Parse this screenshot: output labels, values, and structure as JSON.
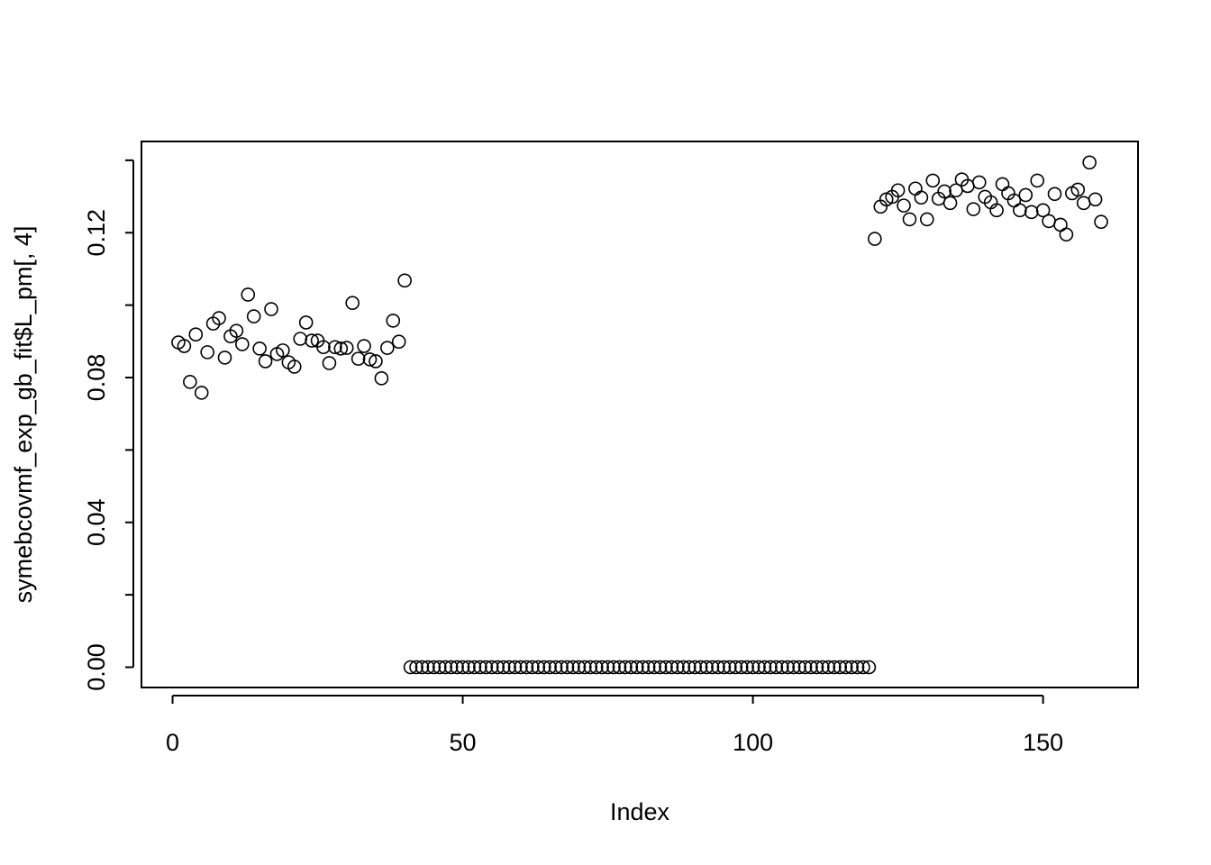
{
  "chart_data": {
    "type": "scatter",
    "x_label": "Index",
    "y_label": "symebcovmf_exp_gb_fit$L_pm[, 4]",
    "x": [
      1,
      2,
      3,
      4,
      5,
      6,
      7,
      8,
      9,
      10,
      11,
      12,
      13,
      14,
      15,
      16,
      17,
      18,
      19,
      20,
      21,
      22,
      23,
      24,
      25,
      26,
      27,
      28,
      29,
      30,
      31,
      32,
      33,
      34,
      35,
      36,
      37,
      38,
      39,
      40,
      41,
      42,
      43,
      44,
      45,
      46,
      47,
      48,
      49,
      50,
      51,
      52,
      53,
      54,
      55,
      56,
      57,
      58,
      59,
      60,
      61,
      62,
      63,
      64,
      65,
      66,
      67,
      68,
      69,
      70,
      71,
      72,
      73,
      74,
      75,
      76,
      77,
      78,
      79,
      80,
      81,
      82,
      83,
      84,
      85,
      86,
      87,
      88,
      89,
      90,
      91,
      92,
      93,
      94,
      95,
      96,
      97,
      98,
      99,
      100,
      101,
      102,
      103,
      104,
      105,
      106,
      107,
      108,
      109,
      110,
      111,
      112,
      113,
      114,
      115,
      116,
      117,
      118,
      119,
      120,
      121,
      122,
      123,
      124,
      125,
      126,
      127,
      128,
      129,
      130,
      131,
      132,
      133,
      134,
      135,
      136,
      137,
      138,
      139,
      140,
      141,
      142,
      143,
      144,
      145,
      146,
      147,
      148,
      149,
      150,
      151,
      152,
      153,
      154,
      155,
      156,
      157,
      158,
      159,
      160
    ],
    "series": [
      {
        "color": "#000000",
        "values": [
          0.0897,
          0.0887,
          0.0788,
          0.0919,
          0.0758,
          0.087,
          0.0949,
          0.0964,
          0.0855,
          0.0914,
          0.0929,
          0.0892,
          0.1029,
          0.0969,
          0.088,
          0.0845,
          0.0989,
          0.0865,
          0.0875,
          0.0842,
          0.083,
          0.0907,
          0.0952,
          0.0902,
          0.0902,
          0.0884,
          0.084,
          0.0884,
          0.088,
          0.0882,
          0.1006,
          0.0852,
          0.0887,
          0.085,
          0.0845,
          0.0798,
          0.0882,
          0.0957,
          0.0899,
          0.1068,
          0,
          0,
          0,
          0,
          0,
          0,
          0,
          0,
          0,
          0,
          0,
          0,
          0,
          0,
          0,
          0,
          0,
          0,
          0,
          0,
          0,
          0,
          0,
          0,
          0,
          0,
          0,
          0,
          0,
          0,
          0,
          0,
          0,
          0,
          0,
          0,
          0,
          0,
          0,
          0,
          0,
          0,
          0,
          0,
          0,
          0,
          0,
          0,
          0,
          0,
          0,
          0,
          0,
          0,
          0,
          0,
          0,
          0,
          0,
          0,
          0,
          0,
          0,
          0,
          0,
          0,
          0,
          0,
          0,
          0,
          0,
          0,
          0,
          0,
          0,
          0,
          0,
          0,
          0,
          0,
          0.1183,
          0.1272,
          0.1292,
          0.1299,
          0.1317,
          0.1275,
          0.1237,
          0.1322,
          0.1297,
          0.1237,
          0.1344,
          0.1294,
          0.1314,
          0.1282,
          0.1317,
          0.1347,
          0.1329,
          0.1265,
          0.1339,
          0.1299,
          0.1284,
          0.1262,
          0.1334,
          0.1309,
          0.1289,
          0.1262,
          0.1304,
          0.1257,
          0.1344,
          0.1262,
          0.1232,
          0.1307,
          0.1222,
          0.1195,
          0.1309,
          0.1319,
          0.1282,
          0.1394,
          0.1292,
          0.123
        ]
      }
    ],
    "xlim": [
      -5.36,
      166.36
    ],
    "xticks": [
      0,
      50,
      100,
      150
    ],
    "ylim": [
      -0.0056,
      0.1452
    ],
    "yticks": [
      {
        "value": 0,
        "label": "0.00"
      },
      {
        "value": 0.02,
        "label": null
      },
      {
        "value": 0.04,
        "label": "0.04"
      },
      {
        "value": 0.06,
        "label": null
      },
      {
        "value": 0.08,
        "label": "0.08"
      },
      {
        "value": 0.1,
        "label": null
      },
      {
        "value": 0.12,
        "label": "0.12"
      },
      {
        "value": 0.14,
        "label": null
      }
    ]
  }
}
